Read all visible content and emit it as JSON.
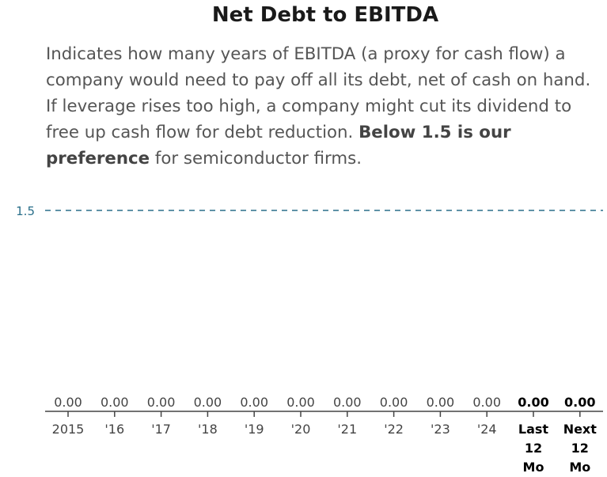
{
  "title": "Net Debt to EBITDA",
  "description": {
    "before_bold": "Indicates how many years of EBITDA (a proxy for cash flow) a company would need to pay off all its debt, net of cash on hand. If leverage rises too high, a company might cut its dividend to free up cash flow for debt reduction. ",
    "bold": "Below 1.5 is our preference",
    "after_bold": " for semiconductor firms."
  },
  "colors": {
    "reference_line": "#2a6f8a",
    "axis": "#444444",
    "text": "#444444"
  },
  "chart_data": {
    "type": "bar",
    "title": "Net Debt to EBITDA",
    "categories": [
      "2015",
      "'16",
      "'17",
      "'18",
      "'19",
      "'20",
      "'21",
      "'22",
      "'23",
      "'24",
      "Last 12 Mo",
      "Next 12 Mo"
    ],
    "values": [
      0.0,
      0.0,
      0.0,
      0.0,
      0.0,
      0.0,
      0.0,
      0.0,
      0.0,
      0.0,
      0.0,
      0.0
    ],
    "value_labels": [
      "0.00",
      "0.00",
      "0.00",
      "0.00",
      "0.00",
      "0.00",
      "0.00",
      "0.00",
      "0.00",
      "0.00",
      "0.00",
      "0.00"
    ],
    "bold_categories": [
      "Last 12 Mo",
      "Next 12 Mo"
    ],
    "reference_line": {
      "value": 1.5,
      "label": "1.5",
      "style": "dashed"
    },
    "ylim": [
      0,
      1.5
    ],
    "xlabel": "",
    "ylabel": "",
    "grid": false,
    "legend": "none"
  }
}
